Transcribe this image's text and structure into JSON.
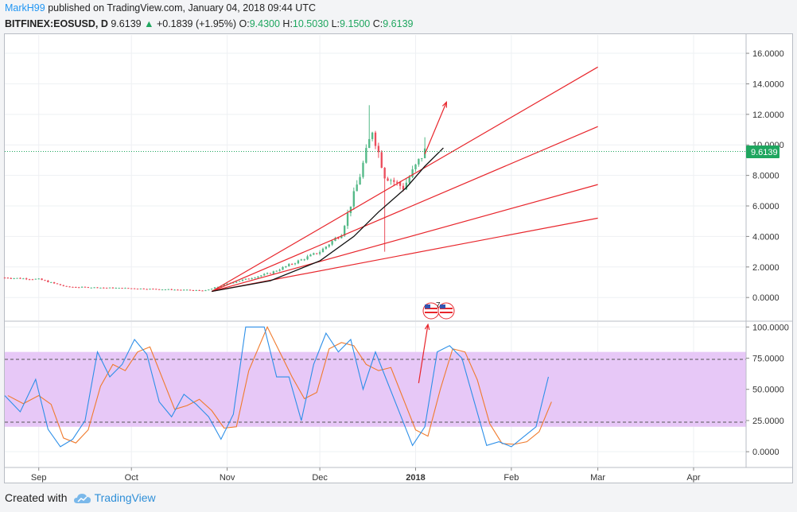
{
  "header": {
    "author": "MarkH99",
    "published_text": " published on TradingView.com, January 04, 2018 09:44 UTC",
    "symbol": "BITFINEX:EOSUSD, D",
    "last": "9.6139",
    "change_arrow": "▲",
    "change": "+0.1839 (+1.95%)",
    "o_label": "O:",
    "o_value": "9.4300",
    "h_label": "H:",
    "h_value": "10.5030",
    "l_label": "L:",
    "l_value": "9.1500",
    "c_label": "C:",
    "c_value": "9.6139"
  },
  "footer": {
    "created_with": "Created with",
    "brand": "TradingView"
  },
  "chart_data": [
    {
      "type": "candlestick",
      "symbol": "BITFINEX:EOSUSD",
      "interval": "D",
      "y_axis_ticks": [
        "16.0000",
        "14.0000",
        "12.0000",
        "10.0000",
        "8.0000",
        "6.0000",
        "4.0000",
        "2.0000",
        "0.0000"
      ],
      "ylim": [
        -1.5,
        17.2
      ],
      "last_price_label": "9.6139",
      "last_price": 9.6139,
      "x_tick_labels": [
        "Sep",
        "Oct",
        "Nov",
        "Dec",
        "2018",
        "Feb",
        "Mar",
        "Apr"
      ],
      "approx_price_path": [
        {
          "date": "2017-08-21",
          "price": 1.3
        },
        {
          "date": "2017-09-01",
          "price": 1.2
        },
        {
          "date": "2017-09-10",
          "price": 0.7
        },
        {
          "date": "2017-10-01",
          "price": 0.6
        },
        {
          "date": "2017-10-25",
          "price": 0.45
        },
        {
          "date": "2017-11-01",
          "price": 0.9
        },
        {
          "date": "2017-11-15",
          "price": 1.6
        },
        {
          "date": "2017-12-01",
          "price": 3.0
        },
        {
          "date": "2017-12-08",
          "price": 4.2
        },
        {
          "date": "2017-12-14",
          "price": 8.0
        },
        {
          "date": "2017-12-18",
          "price": 11.0
        },
        {
          "date": "2017-12-22",
          "price": 8.0
        },
        {
          "date": "2017-12-28",
          "price": 7.2
        },
        {
          "date": "2018-01-04",
          "price": 9.6139
        }
      ],
      "fan_lines_color": "#e8262c",
      "curve_color": "#111111",
      "event_badge": "7",
      "grid": true
    },
    {
      "type": "line",
      "indicator": "Stochastic RSI",
      "y_axis_ticks": [
        "100.0000",
        "75.0000",
        "50.0000",
        "25.0000",
        "0.0000"
      ],
      "ylim": [
        -12,
        104
      ],
      "bands": [
        80,
        20
      ],
      "band_fill": "#e7c8f7",
      "series": [
        {
          "color": "#2d8fe8"
        },
        {
          "color": "#f07a2c"
        }
      ]
    }
  ],
  "colors": {
    "up_candle": "#53b987",
    "down_candle": "#eb4d5c",
    "price_line": "#1fa65f",
    "accent": "#2196f3"
  }
}
